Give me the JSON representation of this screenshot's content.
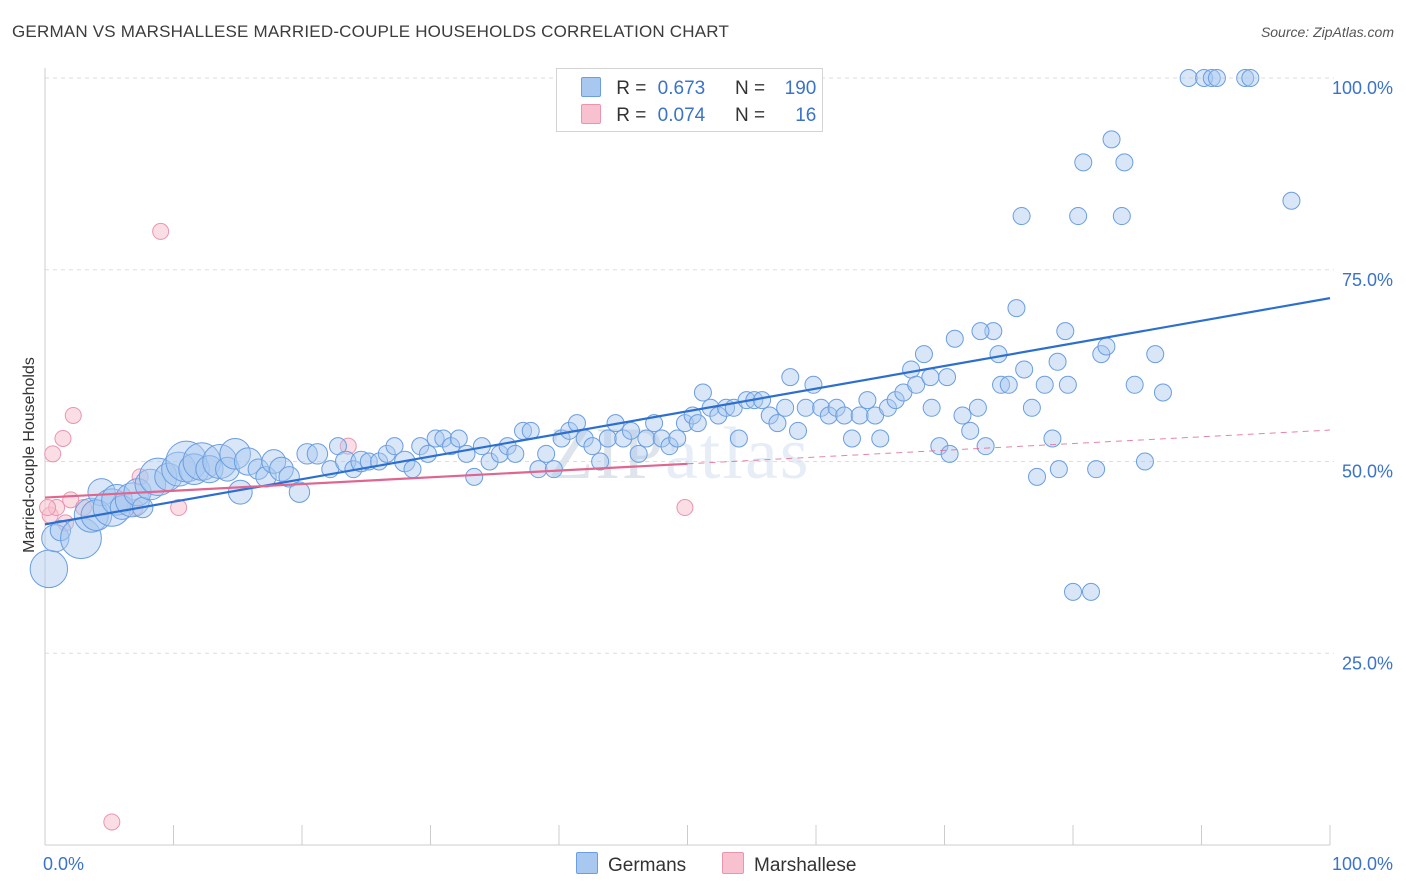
{
  "title": "GERMAN VS MARSHALLESE MARRIED-COUPLE HOUSEHOLDS CORRELATION CHART",
  "source": "Source: ZipAtlas.com",
  "watermark": {
    "zip": "ZIP",
    "atlas": "atlas"
  },
  "colors": {
    "germans_fill": "#a9c8f0",
    "germans_stroke": "#6a9ee0",
    "germans_line": "#2d6fce",
    "marshallese_fill": "#f7c1d0",
    "marshallese_stroke": "#e995ae",
    "marshallese_line": "#e0658f",
    "tick_label": "#3b73c8",
    "grid": "#dddddd"
  },
  "legend": {
    "rows": [
      {
        "r_label": "R =",
        "r_value": "0.673",
        "n_label": "N =",
        "n_value": "190"
      },
      {
        "r_label": "R =",
        "r_value": "0.074",
        "n_label": "N =",
        "n_value": "16"
      }
    ]
  },
  "bottom_legend": [
    "Germans",
    "Marshallese"
  ],
  "chart_data": {
    "type": "scatter",
    "title": "GERMAN VS MARSHALLESE MARRIED-COUPLE HOUSEHOLDS CORRELATION CHART",
    "xlabel": "",
    "ylabel": "Married-couple Households",
    "xlim": [
      0,
      100
    ],
    "ylim": [
      0,
      105
    ],
    "x_tick_labels": [
      "0.0%",
      "100.0%"
    ],
    "y_ticks": [
      25,
      50,
      75,
      100
    ],
    "y_tick_labels": [
      "25.0%",
      "50.0%",
      "75.0%",
      "100.0%"
    ],
    "grid": true,
    "legend_position": "top-center",
    "series": [
      {
        "name": "Germans",
        "R": 0.673,
        "N": 190,
        "trend": {
          "x": [
            0,
            100
          ],
          "y": [
            41.8,
            71.3
          ],
          "dashed_after": null
        },
        "points": [
          [
            0.3,
            36,
            22
          ],
          [
            0.8,
            40,
            16
          ],
          [
            1.2,
            41,
            12
          ],
          [
            2.8,
            40,
            24
          ],
          [
            3.6,
            43,
            20
          ],
          [
            4.4,
            46,
            16
          ],
          [
            4.0,
            43,
            18
          ],
          [
            5.2,
            44,
            22
          ],
          [
            5.6,
            45,
            18
          ],
          [
            6.0,
            44,
            14
          ],
          [
            6.8,
            45,
            20
          ],
          [
            7.2,
            46,
            16
          ],
          [
            7.6,
            44,
            12
          ],
          [
            8.2,
            47,
            18
          ],
          [
            8.8,
            48,
            22
          ],
          [
            9.6,
            48,
            16
          ],
          [
            10.4,
            49,
            20
          ],
          [
            11.0,
            50,
            24
          ],
          [
            11.6,
            49,
            18
          ],
          [
            12.2,
            50,
            22
          ],
          [
            12.8,
            49,
            16
          ],
          [
            13.6,
            50,
            20
          ],
          [
            14.2,
            49,
            14
          ],
          [
            14.8,
            51,
            18
          ],
          [
            15.2,
            46,
            14
          ],
          [
            15.8,
            50,
            16
          ],
          [
            16.6,
            49,
            12
          ],
          [
            17.2,
            48,
            12
          ],
          [
            17.8,
            50,
            14
          ],
          [
            18.4,
            49,
            14
          ],
          [
            19.0,
            48,
            12
          ],
          [
            19.8,
            46,
            12
          ],
          [
            20.4,
            51,
            12
          ],
          [
            21.2,
            51,
            12
          ],
          [
            22.2,
            49,
            10
          ],
          [
            22.8,
            52,
            10
          ],
          [
            23.4,
            50,
            12
          ],
          [
            24.0,
            49,
            10
          ],
          [
            24.6,
            50,
            12
          ],
          [
            25.2,
            50,
            10
          ],
          [
            26.0,
            50,
            10
          ],
          [
            26.6,
            51,
            10
          ],
          [
            27.2,
            52,
            10
          ],
          [
            28.0,
            50,
            12
          ],
          [
            28.6,
            49,
            10
          ],
          [
            29.2,
            52,
            10
          ],
          [
            29.8,
            51,
            10
          ],
          [
            30.4,
            53,
            10
          ],
          [
            31.0,
            53,
            10
          ],
          [
            31.6,
            52,
            10
          ],
          [
            32.2,
            53,
            10
          ],
          [
            32.8,
            51,
            10
          ],
          [
            33.4,
            48,
            10
          ],
          [
            34.0,
            52,
            10
          ],
          [
            34.6,
            50,
            10
          ],
          [
            35.4,
            51,
            10
          ],
          [
            36.0,
            52,
            10
          ],
          [
            36.6,
            51,
            10
          ],
          [
            37.2,
            54,
            10
          ],
          [
            37.8,
            54,
            10
          ],
          [
            38.4,
            49,
            10
          ],
          [
            39.0,
            51,
            10
          ],
          [
            39.6,
            49,
            10
          ],
          [
            40.2,
            53,
            10
          ],
          [
            40.8,
            54,
            10
          ],
          [
            41.4,
            55,
            10
          ],
          [
            42.0,
            53,
            10
          ],
          [
            42.6,
            52,
            10
          ],
          [
            43.2,
            50,
            10
          ],
          [
            43.8,
            53,
            10
          ],
          [
            44.4,
            55,
            10
          ],
          [
            45.0,
            53,
            10
          ],
          [
            45.6,
            54,
            10
          ],
          [
            46.2,
            51,
            10
          ],
          [
            46.8,
            53,
            10
          ],
          [
            47.4,
            55,
            10
          ],
          [
            48.0,
            53,
            10
          ],
          [
            48.6,
            52,
            10
          ],
          [
            49.2,
            53,
            10
          ],
          [
            49.8,
            55,
            10
          ],
          [
            50.4,
            56,
            10
          ],
          [
            50.8,
            55,
            10
          ],
          [
            51.2,
            59,
            10
          ],
          [
            51.8,
            57,
            10
          ],
          [
            52.4,
            56,
            10
          ],
          [
            53.0,
            57,
            10
          ],
          [
            53.6,
            57,
            10
          ],
          [
            54.0,
            53,
            10
          ],
          [
            54.6,
            58,
            10
          ],
          [
            55.2,
            58,
            10
          ],
          [
            55.8,
            58,
            10
          ],
          [
            56.4,
            56,
            10
          ],
          [
            57.0,
            55,
            10
          ],
          [
            57.6,
            57,
            10
          ],
          [
            58.0,
            61,
            10
          ],
          [
            58.6,
            54,
            10
          ],
          [
            59.2,
            57,
            10
          ],
          [
            59.8,
            60,
            10
          ],
          [
            60.4,
            57,
            10
          ],
          [
            61.0,
            56,
            10
          ],
          [
            61.6,
            57,
            10
          ],
          [
            62.2,
            56,
            10
          ],
          [
            62.8,
            53,
            10
          ],
          [
            63.4,
            56,
            10
          ],
          [
            64.0,
            58,
            10
          ],
          [
            64.6,
            56,
            10
          ],
          [
            65.0,
            53,
            10
          ],
          [
            65.6,
            57,
            10
          ],
          [
            66.2,
            58,
            10
          ],
          [
            66.8,
            59,
            10
          ],
          [
            67.4,
            62,
            10
          ],
          [
            67.8,
            60,
            10
          ],
          [
            68.4,
            64,
            10
          ],
          [
            69.0,
            57,
            10
          ],
          [
            69.6,
            52,
            10
          ],
          [
            70.2,
            61,
            10
          ],
          [
            70.8,
            66,
            10
          ],
          [
            71.4,
            56,
            10
          ],
          [
            72.0,
            54,
            10
          ],
          [
            72.6,
            57,
            10
          ],
          [
            73.2,
            52,
            10
          ],
          [
            73.8,
            67,
            10
          ],
          [
            74.4,
            60,
            10
          ],
          [
            75.0,
            60,
            10
          ],
          [
            75.6,
            70,
            10
          ],
          [
            76.2,
            62,
            10
          ],
          [
            76.8,
            57,
            10
          ],
          [
            77.2,
            48,
            10
          ],
          [
            77.8,
            60,
            10
          ],
          [
            78.4,
            53,
            10
          ],
          [
            78.9,
            49,
            10
          ],
          [
            79.4,
            67,
            10
          ],
          [
            80.0,
            33,
            10
          ],
          [
            80.4,
            82,
            10
          ],
          [
            81.4,
            33,
            10
          ],
          [
            81.8,
            49,
            10
          ],
          [
            82.2,
            64,
            10
          ],
          [
            82.6,
            65,
            10
          ],
          [
            83.0,
            92,
            10
          ],
          [
            83.8,
            82,
            10
          ],
          [
            84.0,
            89,
            10
          ],
          [
            84.8,
            60,
            10
          ],
          [
            85.6,
            50,
            10
          ],
          [
            86.4,
            64,
            10
          ],
          [
            87.0,
            59,
            10
          ],
          [
            89.0,
            100,
            10
          ],
          [
            90.2,
            100,
            10
          ],
          [
            90.8,
            100,
            10
          ],
          [
            91.2,
            100,
            10
          ],
          [
            93.4,
            100,
            10
          ],
          [
            93.8,
            100,
            10
          ],
          [
            97.0,
            84,
            10
          ],
          [
            76.0,
            82,
            10
          ],
          [
            74.2,
            64,
            10
          ],
          [
            72.8,
            67,
            10
          ],
          [
            80.8,
            89,
            10
          ],
          [
            78.8,
            63,
            10
          ],
          [
            79.6,
            60,
            10
          ],
          [
            68.9,
            61,
            10
          ],
          [
            70.4,
            51,
            10
          ]
        ]
      },
      {
        "name": "Marshallese",
        "R": 0.074,
        "N": 16,
        "trend": {
          "x": [
            0,
            50
          ],
          "y": [
            45.3,
            49.7
          ],
          "dashed_x": [
            50,
            100
          ],
          "dashed_y": [
            49.7,
            54.1
          ]
        },
        "points": [
          [
            0.6,
            51,
            10
          ],
          [
            1.4,
            53,
            10
          ],
          [
            2.2,
            56,
            10
          ],
          [
            0.4,
            43,
            10
          ],
          [
            0.9,
            44,
            10
          ],
          [
            1.6,
            42,
            10
          ],
          [
            2.0,
            45,
            10
          ],
          [
            3.0,
            44,
            10
          ],
          [
            7.0,
            44,
            10
          ],
          [
            7.4,
            48,
            10
          ],
          [
            9.0,
            80,
            10
          ],
          [
            10.4,
            44,
            10
          ],
          [
            23.6,
            52,
            10
          ],
          [
            49.8,
            44,
            10
          ],
          [
            5.2,
            3,
            10
          ],
          [
            0.2,
            44,
            10
          ]
        ]
      }
    ]
  }
}
